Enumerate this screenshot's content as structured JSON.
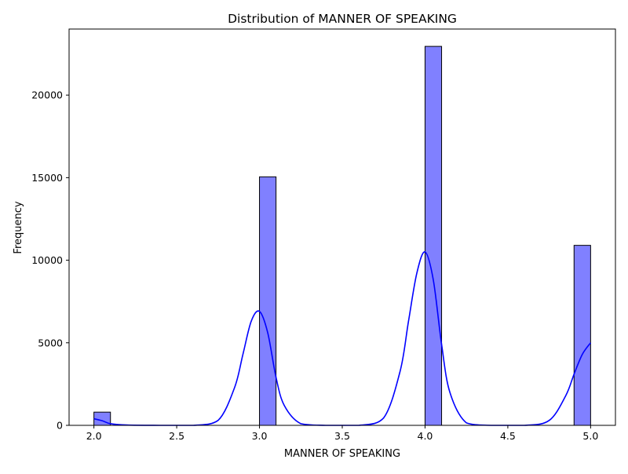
{
  "chart_data": {
    "type": "bar",
    "title": "Distribution of MANNER OF SPEAKING",
    "xlabel": "MANNER OF SPEAKING",
    "ylabel": "Frequency",
    "xlim": [
      1.85,
      5.15
    ],
    "ylim": [
      0,
      24000
    ],
    "x_ticks": [
      2.0,
      2.5,
      3.0,
      3.5,
      4.0,
      4.5,
      5.0
    ],
    "x_tick_labels": [
      "2.0",
      "2.5",
      "3.0",
      "3.5",
      "4.0",
      "4.5",
      "5.0"
    ],
    "y_ticks": [
      0,
      5000,
      10000,
      15000,
      20000
    ],
    "y_tick_labels": [
      "0",
      "5000",
      "10000",
      "15000",
      "20000"
    ],
    "grid": false,
    "bin_width": 0.1,
    "series": [
      {
        "kind": "histogram",
        "bins": [
          {
            "start": 2.0,
            "end": 2.1,
            "count": 800
          },
          {
            "start": 3.0,
            "end": 3.1,
            "count": 15050
          },
          {
            "start": 4.0,
            "end": 4.1,
            "count": 22950
          },
          {
            "start": 4.9,
            "end": 5.0,
            "count": 10900
          }
        ]
      },
      {
        "kind": "kde",
        "x": [
          2.0,
          2.05,
          2.1,
          2.2,
          2.4,
          2.6,
          2.75,
          2.85,
          2.9,
          2.95,
          3.0,
          3.05,
          3.1,
          3.15,
          3.25,
          3.4,
          3.6,
          3.75,
          3.85,
          3.9,
          3.95,
          4.0,
          4.05,
          4.1,
          4.15,
          4.25,
          4.4,
          4.6,
          4.75,
          4.85,
          4.9,
          4.95,
          5.0
        ],
        "y": [
          400,
          280,
          100,
          20,
          0,
          0,
          300,
          2300,
          4300,
          6300,
          6900,
          5600,
          2900,
          1200,
          100,
          0,
          0,
          450,
          3300,
          6300,
          9200,
          10500,
          8800,
          4900,
          2000,
          150,
          0,
          0,
          300,
          1800,
          3100,
          4300,
          5000
        ]
      }
    ],
    "colors": {
      "bar_fill": "#8080ff",
      "bar_edge": "#000000",
      "kde_line": "#0000ff",
      "axis": "#000000"
    }
  }
}
